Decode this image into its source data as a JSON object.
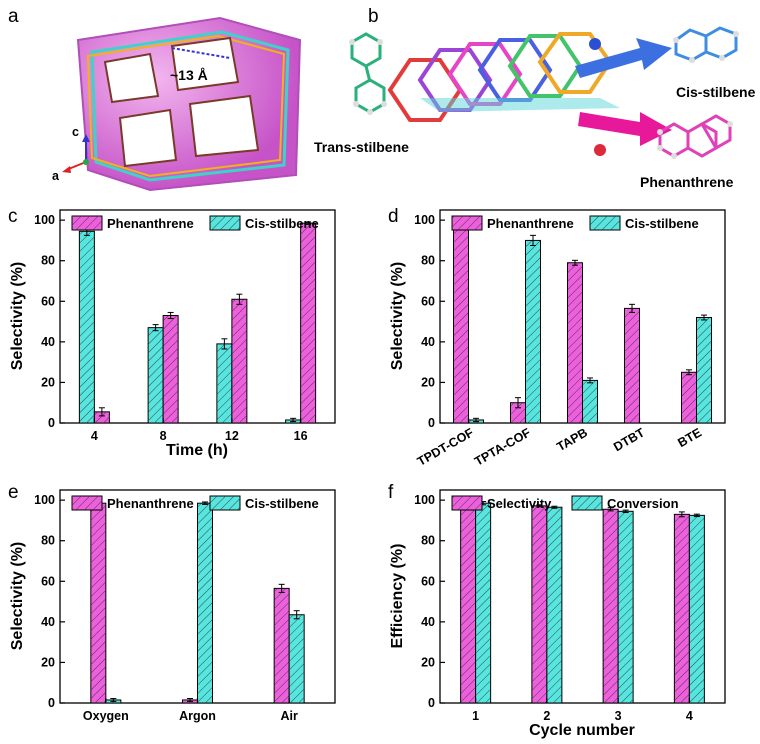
{
  "panels": {
    "a": {
      "label": "a",
      "pore_size": "~13 Å",
      "axis_c": "c",
      "axis_a": "a"
    },
    "b": {
      "label": "b",
      "reactant": "Trans-stilbene",
      "product_top": "Cis-stilbene",
      "product_bottom": "Phenanthrene"
    }
  },
  "colors": {
    "pink": "#ee5fdd",
    "cyan": "#56e6df",
    "frame": "#cc66ee"
  },
  "chart_data": [
    {
      "panel": "c",
      "type": "bar",
      "categories": [
        "4",
        "8",
        "12",
        "16"
      ],
      "series": [
        {
          "name": "Cis-stilbene",
          "values": [
            94.5,
            47.0,
            39.0,
            1.5
          ],
          "errors": [
            2.0,
            1.5,
            2.5,
            0.8
          ]
        },
        {
          "name": "Phenanthrene",
          "values": [
            5.5,
            53.0,
            61.0,
            98.5
          ],
          "errors": [
            2.0,
            1.5,
            2.5,
            0.6
          ]
        }
      ],
      "legend": [
        "Phenanthrene",
        "Cis-stilbene"
      ],
      "xlabel": "Time (h)",
      "ylabel": "Selectivity (%)",
      "ylim": [
        0,
        105
      ],
      "yticks": [
        0,
        20,
        40,
        60,
        80,
        100
      ],
      "legend_position": "top"
    },
    {
      "panel": "d",
      "type": "bar",
      "categories": [
        "TPDT-COF",
        "TPTA-COF",
        "TAPB",
        "DTBT",
        "BTE"
      ],
      "series": [
        {
          "name": "Phenanthrene",
          "values": [
            98.5,
            10.0,
            79.0,
            56.5,
            25.0
          ],
          "errors": [
            0.8,
            2.5,
            1.2,
            2.0,
            1.2
          ]
        },
        {
          "name": "Cis-stilbene",
          "values": [
            1.5,
            90.0,
            21.0,
            0,
            52.0
          ],
          "errors": [
            0.8,
            2.5,
            1.2,
            0,
            1.2
          ]
        }
      ],
      "legend": [
        "Phenanthrene",
        "Cis-stilbene"
      ],
      "xlabel": "",
      "ylabel": "Selectivity (%)",
      "ylim": [
        0,
        105
      ],
      "yticks": [
        0,
        20,
        40,
        60,
        80,
        100
      ],
      "legend_position": "top"
    },
    {
      "panel": "e",
      "type": "bar",
      "categories": [
        "Oxygen",
        "Argon",
        "Air"
      ],
      "series": [
        {
          "name": "Phenanthrene",
          "values": [
            98.5,
            1.5,
            56.5
          ],
          "errors": [
            1.0,
            0.7,
            2.0
          ]
        },
        {
          "name": "Cis-stilbene",
          "values": [
            1.5,
            98.5,
            43.5
          ],
          "errors": [
            0.7,
            0.6,
            2.0
          ]
        }
      ],
      "legend": [
        "Phenanthrene",
        "Cis-stilbene"
      ],
      "xlabel": "",
      "ylabel": "Selectivity (%)",
      "ylim": [
        0,
        105
      ],
      "yticks": [
        0,
        20,
        40,
        60,
        80,
        100
      ],
      "legend_position": "top"
    },
    {
      "panel": "f",
      "type": "bar",
      "categories": [
        "1",
        "2",
        "3",
        "4"
      ],
      "series": [
        {
          "name": "Selectivity",
          "values": [
            98.5,
            97.2,
            95.5,
            93.0
          ],
          "errors": [
            0.8,
            0.5,
            0.8,
            1.2
          ]
        },
        {
          "name": "Conversion",
          "values": [
            98.5,
            96.5,
            94.5,
            92.5
          ],
          "errors": [
            0.8,
            0.5,
            0.6,
            0.6
          ]
        }
      ],
      "legend": [
        "Selectivity",
        "Conversion"
      ],
      "xlabel": "Cycle number",
      "ylabel": "Efficiency (%)",
      "ylim": [
        0,
        105
      ],
      "yticks": [
        0,
        20,
        40,
        60,
        80,
        100
      ],
      "legend_position": "top"
    }
  ]
}
